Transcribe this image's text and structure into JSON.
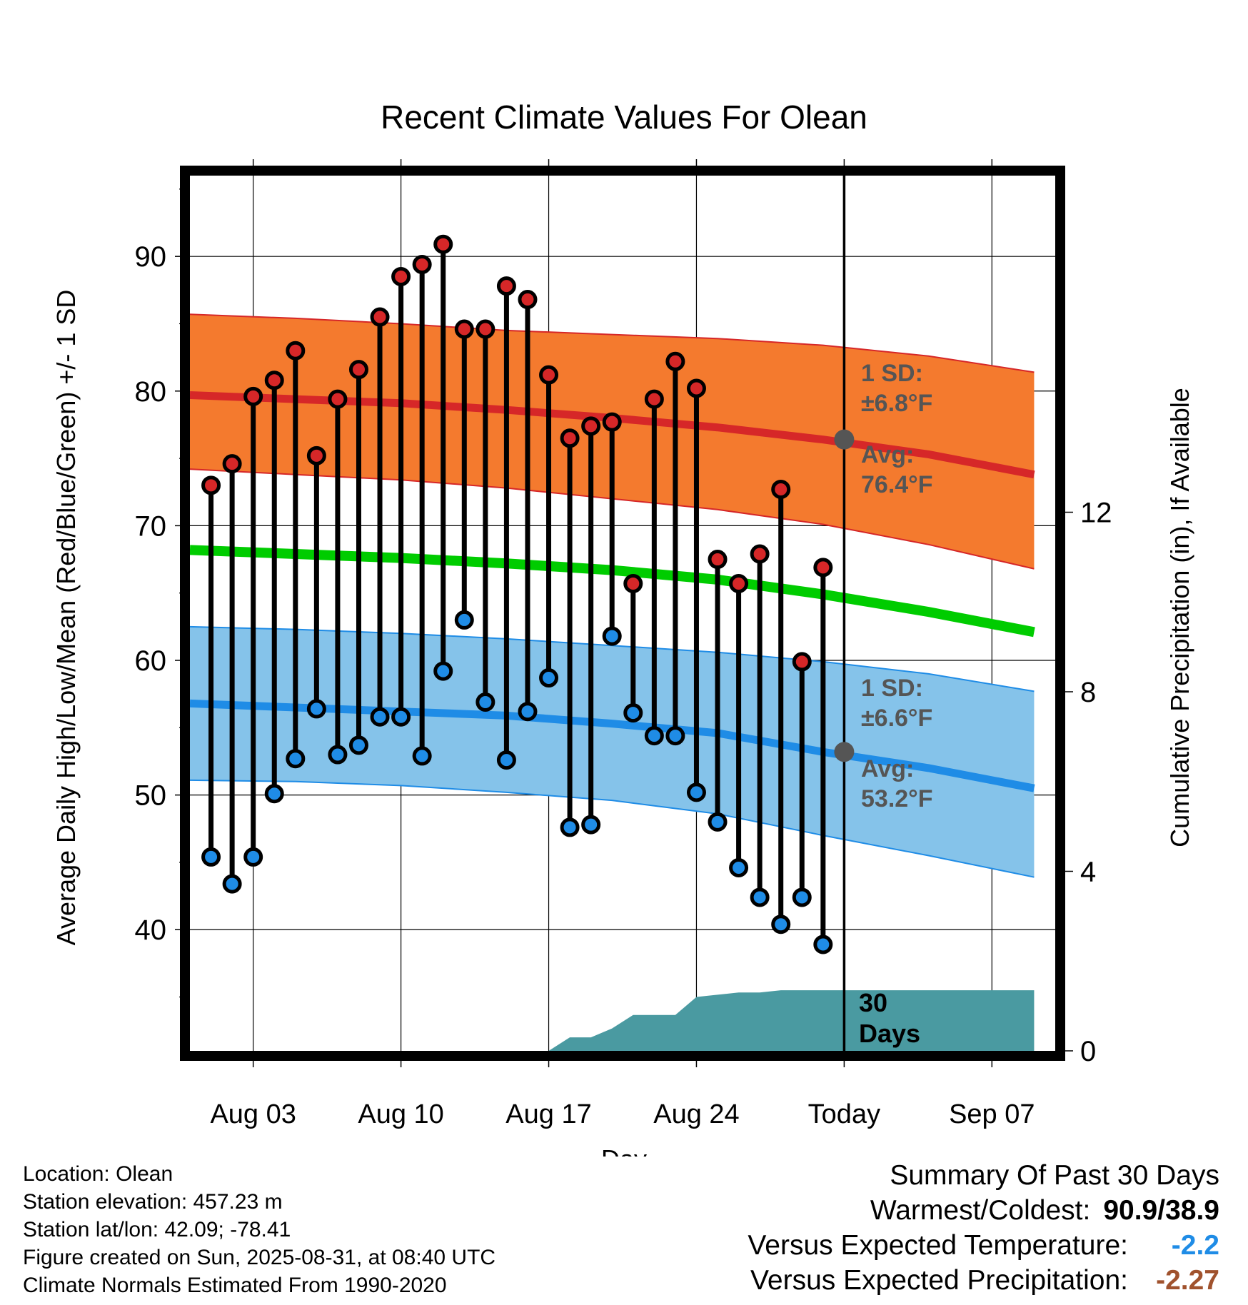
{
  "title": "Recent Climate Values For Olean",
  "chart_data": {
    "type": "line",
    "title": "Recent Climate Values For Olean",
    "xlabel": "Day",
    "ylabel": "Average Daily High/Low/Mean (Red/Blue/Green) +/- 1 SD",
    "y2label": "Cumulative Precipitation (in), If Available",
    "x_ticks": [
      "Aug 03",
      "Aug 10",
      "Aug 17",
      "Aug 24",
      "Today",
      "Sep 07"
    ],
    "x_range": [
      "Jul 31",
      "Sep 10"
    ],
    "ylim": [
      31,
      96
    ],
    "y_ticks": [
      40,
      50,
      60,
      70,
      80,
      90
    ],
    "y2lim": [
      0,
      19.5
    ],
    "y2_ticks": [
      0,
      4,
      8,
      12
    ],
    "grid": true,
    "days": [
      1,
      2,
      3,
      4,
      5,
      6,
      7,
      8,
      9,
      10,
      11,
      12,
      13,
      14,
      15,
      16,
      17,
      18,
      19,
      20,
      21,
      22,
      23,
      24,
      25,
      26,
      27,
      28,
      29,
      30
    ],
    "observed_high": [
      73.0,
      74.6,
      79.6,
      80.8,
      83.0,
      75.2,
      79.4,
      81.6,
      85.5,
      88.5,
      89.4,
      90.9,
      84.6,
      84.6,
      87.8,
      86.8,
      81.2,
      76.5,
      77.4,
      77.7,
      65.7,
      79.4,
      82.2,
      80.2,
      67.5,
      65.7,
      67.9,
      72.7,
      59.9,
      66.9
    ],
    "observed_low": [
      45.4,
      43.4,
      45.4,
      50.1,
      52.7,
      56.4,
      53.0,
      53.7,
      55.8,
      55.8,
      52.9,
      59.2,
      63.0,
      56.9,
      52.6,
      56.2,
      58.7,
      47.6,
      47.8,
      61.8,
      56.1,
      54.4,
      54.4,
      50.2,
      48.0,
      44.6,
      42.4,
      40.4,
      42.4,
      38.9
    ],
    "normal_days": [
      0,
      5,
      10,
      15,
      20,
      25,
      30,
      35,
      40
    ],
    "normal_high_mean": [
      79.7,
      79.4,
      79.1,
      78.6,
      78.0,
      77.3,
      76.4,
      75.3,
      73.8
    ],
    "normal_high_upper": [
      85.7,
      85.4,
      85.0,
      84.5,
      84.2,
      83.9,
      83.4,
      82.6,
      81.4
    ],
    "normal_high_lower": [
      74.2,
      73.8,
      73.4,
      72.8,
      72.0,
      71.2,
      70.1,
      68.6,
      66.8
    ],
    "normal_mean": [
      68.2,
      67.9,
      67.6,
      67.2,
      66.7,
      66.0,
      64.9,
      63.6,
      62.1
    ],
    "normal_low_mean": [
      56.8,
      56.5,
      56.2,
      55.9,
      55.3,
      54.6,
      53.2,
      52.0,
      50.5
    ],
    "normal_low_upper": [
      62.5,
      62.3,
      62.0,
      61.6,
      61.1,
      60.6,
      59.9,
      59.0,
      57.7
    ],
    "normal_low_lower": [
      51.1,
      51.0,
      50.7,
      50.2,
      49.6,
      48.6,
      47.0,
      45.5,
      43.9
    ],
    "precip_days": [
      17,
      18,
      19,
      20,
      21,
      22,
      23,
      24,
      25,
      26,
      27,
      28,
      29,
      30,
      40
    ],
    "precip_cumulative": [
      0.0,
      0.3,
      0.3,
      0.5,
      0.8,
      0.8,
      0.8,
      1.2,
      1.25,
      1.3,
      1.3,
      1.35,
      1.35,
      1.35,
      1.35
    ],
    "series": [
      {
        "name": "1 SD:",
        "color": "#d62728"
      },
      {
        "name": "1 SD:",
        "color": "#1f8ce6"
      }
    ]
  },
  "annotations": {
    "high_sd_title": "1 SD:",
    "high_sd_value": "±6.8°F",
    "high_avg_title": "Avg:",
    "high_avg_value": "76.4°F",
    "low_sd_title": "1 SD:",
    "low_sd_value": "±6.6°F",
    "low_avg_title": "Avg:",
    "low_avg_value": "53.2°F",
    "days_count": "30",
    "days_label": "Days"
  },
  "colors": {
    "high_band": "#f47a2e",
    "high_line": "#d62728",
    "low_band": "#85c3ea",
    "low_line": "#1f8ce6",
    "mean_line": "#00cc00",
    "precip": "#4a9aa1",
    "marker_high": "#d62728",
    "marker_low": "#1f8ce6",
    "annotation_text": "#555555",
    "diff_temp": "#1f8ce6",
    "diff_precip": "#a0522d"
  },
  "info": {
    "location": "Location: Olean",
    "elevation": "Station elevation: 457.23 m",
    "latlon": "Station lat/lon: 42.09; -78.41",
    "created": "Figure created on Sun, 2025-08-31, at 08:40 UTC",
    "normals": "Climate Normals Estimated From 1990-2020"
  },
  "summary": {
    "title": "Summary Of Past 30 Days",
    "warmest_label": "Warmest/Coldest:",
    "warmest_value": "90.9/38.9",
    "temp_label": "Versus Expected Temperature:",
    "temp_value": "-2.2",
    "precip_label": "Versus Expected Precipitation:",
    "precip_value": "-2.27"
  }
}
